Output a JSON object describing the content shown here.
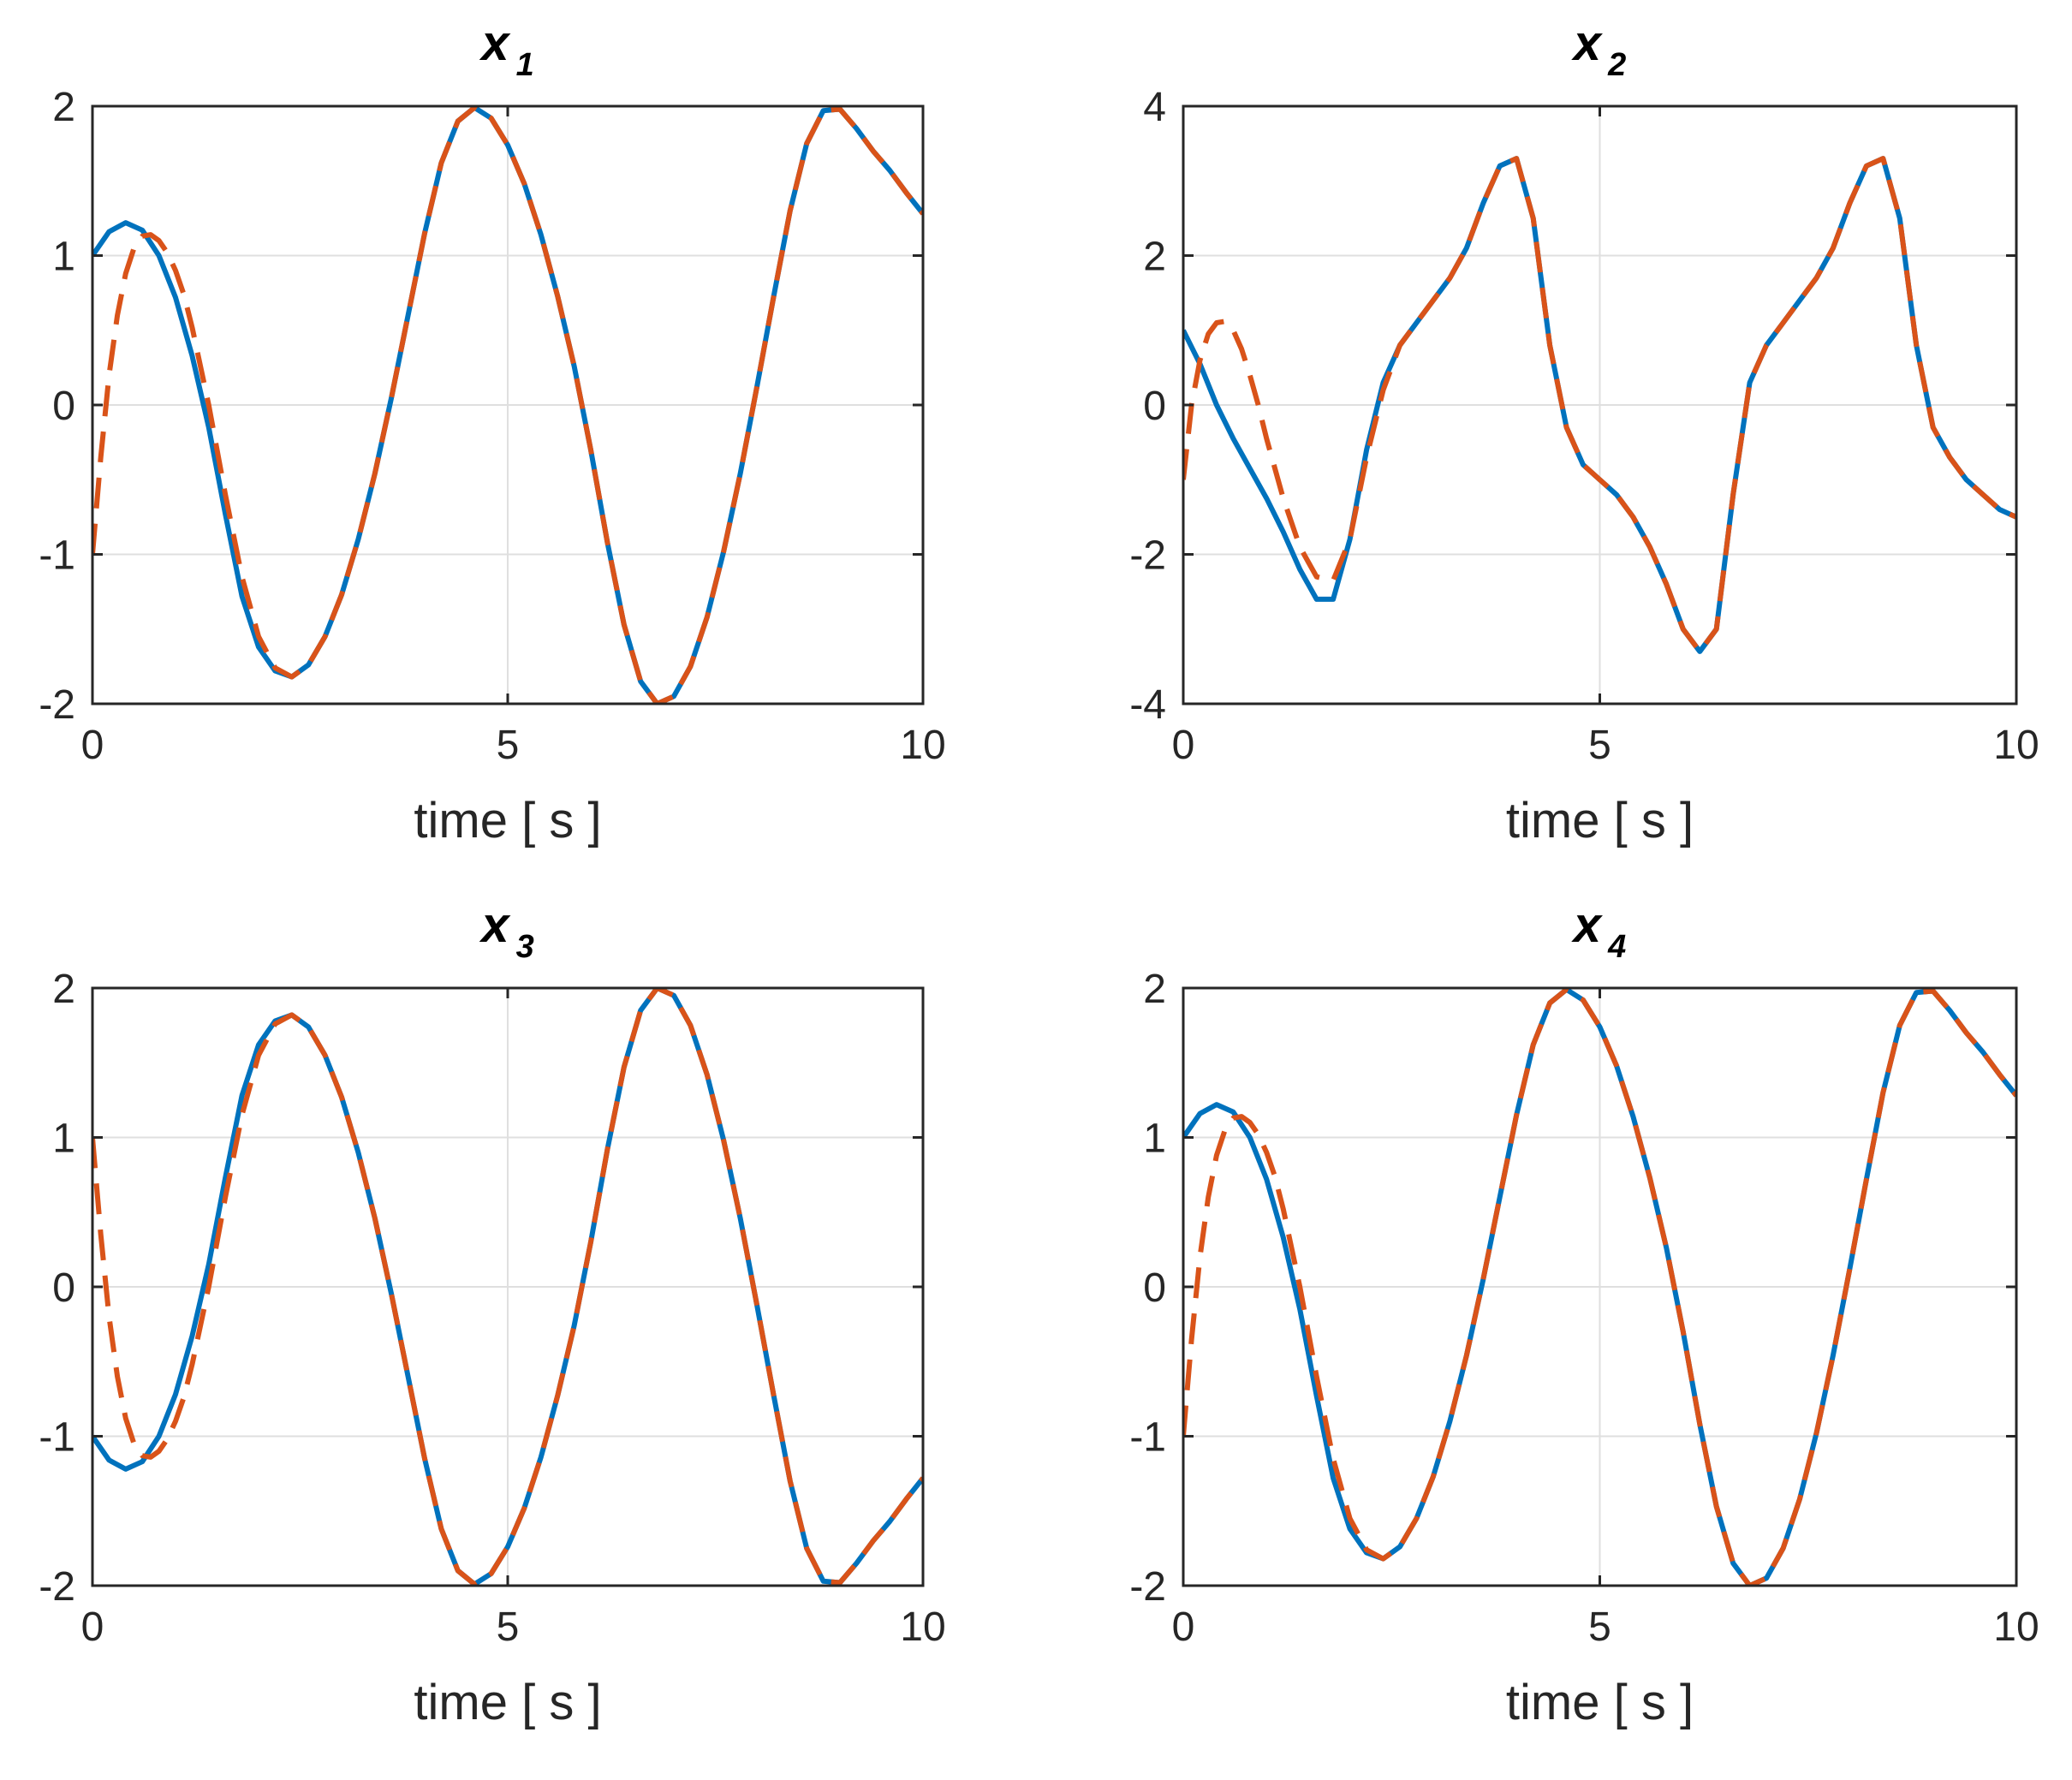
{
  "figure": {
    "background": "#ffffff",
    "axes_color": "#262626",
    "grid_color": "#dfdfdf"
  },
  "chart_data": [
    {
      "type": "line",
      "title": "x",
      "title_subscript": "1",
      "xlabel": "time [ s ]",
      "ylabel": "",
      "xlim": [
        0,
        10
      ],
      "ylim": [
        -2,
        2
      ],
      "xticks": [
        "0",
        "5",
        "10"
      ],
      "yticks": [
        "-2",
        "-1",
        "0",
        "1",
        "2"
      ],
      "grid": true,
      "legend": "none",
      "series": [
        {
          "color": "#0072bd",
          "style": "solid",
          "x": [
            0,
            0.2,
            0.4,
            0.6,
            0.8,
            1.0,
            1.2,
            1.4,
            1.6,
            1.8,
            2.0,
            2.2,
            2.4,
            2.6,
            2.8,
            3.0,
            3.2,
            3.4,
            3.6,
            3.8,
            4.0,
            4.2,
            4.4,
            4.6,
            4.8,
            5.0,
            5.2,
            5.4,
            5.6,
            5.8,
            6.0,
            6.2,
            6.4,
            6.6,
            6.8,
            7.0,
            7.2,
            7.4,
            7.6,
            7.8,
            8.0,
            8.2,
            8.4,
            8.6,
            8.8,
            9.0,
            9.2,
            9.4,
            9.6,
            9.8,
            10.0
          ],
          "y": [
            1.0,
            1.16,
            1.22,
            1.17,
            1.0,
            0.72,
            0.33,
            -0.15,
            -0.73,
            -1.28,
            -1.62,
            -1.78,
            -1.82,
            -1.74,
            -1.55,
            -1.27,
            -0.9,
            -0.46,
            0.05,
            0.6,
            1.15,
            1.62,
            1.9,
            1.99,
            1.92,
            1.74,
            1.48,
            1.14,
            0.73,
            0.26,
            -0.3,
            -0.92,
            -1.47,
            -1.85,
            -2.0,
            -1.95,
            -1.75,
            -1.42,
            -0.98,
            -0.46,
            0.12,
            0.72,
            1.3,
            1.75,
            1.97,
            1.98,
            1.85,
            1.7,
            1.57,
            1.42,
            1.28
          ]
        },
        {
          "color": "#d95319",
          "style": "dashed",
          "x": [
            0,
            0.1,
            0.2,
            0.3,
            0.4,
            0.5,
            0.6,
            0.7,
            0.8,
            0.9,
            1.0,
            1.1,
            1.2,
            1.4,
            1.6,
            1.8,
            2.0,
            2.2,
            2.4,
            2.6,
            2.8,
            3.0,
            3.2,
            3.4,
            3.6,
            3.8,
            4.0,
            4.2,
            4.4,
            4.6,
            4.8,
            5.0,
            5.2,
            5.4,
            5.6,
            5.8,
            6.0,
            6.2,
            6.4,
            6.6,
            6.8,
            7.0,
            7.2,
            7.4,
            7.6,
            7.8,
            8.0,
            8.2,
            8.4,
            8.6,
            8.8,
            9.0,
            9.2,
            9.4,
            9.6,
            9.8,
            10.0
          ],
          "y": [
            -1.0,
            -0.35,
            0.2,
            0.6,
            0.88,
            1.05,
            1.13,
            1.14,
            1.1,
            1.02,
            0.9,
            0.74,
            0.52,
            0.0,
            -0.6,
            -1.15,
            -1.55,
            -1.76,
            -1.82,
            -1.74,
            -1.55,
            -1.27,
            -0.9,
            -0.46,
            0.05,
            0.6,
            1.15,
            1.62,
            1.9,
            1.99,
            1.92,
            1.74,
            1.48,
            1.14,
            0.73,
            0.26,
            -0.3,
            -0.92,
            -1.47,
            -1.85,
            -2.0,
            -1.95,
            -1.75,
            -1.42,
            -0.98,
            -0.46,
            0.12,
            0.72,
            1.3,
            1.75,
            1.97,
            1.98,
            1.85,
            1.7,
            1.57,
            1.42,
            1.28
          ]
        }
      ]
    },
    {
      "type": "line",
      "title": "x",
      "title_subscript": "2",
      "xlabel": "time [ s ]",
      "ylabel": "",
      "xlim": [
        0,
        10
      ],
      "ylim": [
        -4,
        4
      ],
      "xticks": [
        "0",
        "5",
        "10"
      ],
      "yticks": [
        "-4",
        "-2",
        "0",
        "2",
        "4"
      ],
      "grid": true,
      "legend": "none",
      "series": [
        {
          "color": "#0072bd",
          "style": "solid",
          "x": [
            0,
            0.2,
            0.4,
            0.6,
            0.8,
            1.0,
            1.2,
            1.4,
            1.6,
            1.8,
            2.0,
            2.2,
            2.4,
            2.6,
            2.8,
            3.0,
            3.2,
            3.4,
            3.6,
            3.8,
            4.0,
            4.2,
            4.4,
            4.6,
            4.8,
            5.0,
            5.2,
            5.4,
            5.6,
            5.8,
            6.0,
            6.2,
            6.4,
            6.6,
            6.8,
            7.0,
            7.2,
            7.4,
            7.6,
            7.8,
            8.0,
            8.2,
            8.4,
            8.6,
            8.8,
            9.0,
            9.2,
            9.4,
            9.6,
            9.8,
            10.0
          ],
          "y": [
            1.0,
            0.55,
            0.0,
            -0.45,
            -0.85,
            -1.25,
            -1.7,
            -2.2,
            -2.6,
            -2.6,
            -1.8,
            -0.6,
            0.3,
            0.8,
            1.1,
            1.4,
            1.7,
            2.1,
            2.7,
            3.2,
            3.3,
            2.5,
            0.8,
            -0.3,
            -0.8,
            -1.0,
            -1.2,
            -1.5,
            -1.9,
            -2.4,
            -3.0,
            -3.3,
            -3.0,
            -1.2,
            0.3,
            0.8,
            1.1,
            1.4,
            1.7,
            2.1,
            2.7,
            3.2,
            3.3,
            2.5,
            0.8,
            -0.3,
            -0.7,
            -1.0,
            -1.2,
            -1.4,
            -1.5
          ]
        },
        {
          "color": "#d95319",
          "style": "dashed",
          "x": [
            0,
            0.1,
            0.2,
            0.3,
            0.4,
            0.5,
            0.6,
            0.7,
            0.8,
            0.9,
            1.0,
            1.2,
            1.4,
            1.6,
            1.8,
            2.0,
            2.2,
            2.4,
            2.6,
            2.8,
            3.0,
            3.2,
            3.4,
            3.6,
            3.8,
            4.0,
            4.2,
            4.4,
            4.6,
            4.8,
            5.0,
            5.2,
            5.4,
            5.6,
            5.8,
            6.0,
            6.2,
            6.4,
            6.6,
            6.8,
            7.0,
            7.2,
            7.4,
            7.6,
            7.8,
            8.0,
            8.2,
            8.4,
            8.6,
            8.8,
            9.0,
            9.2,
            9.4,
            9.6,
            9.8,
            10.0
          ],
          "y": [
            -1.0,
            0.0,
            0.6,
            0.95,
            1.1,
            1.12,
            1.0,
            0.75,
            0.4,
            0.0,
            -0.45,
            -1.25,
            -1.9,
            -2.3,
            -2.35,
            -1.8,
            -0.7,
            0.2,
            0.8,
            1.1,
            1.4,
            1.7,
            2.1,
            2.7,
            3.2,
            3.3,
            2.5,
            0.8,
            -0.3,
            -0.8,
            -1.0,
            -1.2,
            -1.5,
            -1.9,
            -2.4,
            -3.0,
            -3.3,
            -3.0,
            -1.2,
            0.3,
            0.8,
            1.1,
            1.4,
            1.7,
            2.1,
            2.7,
            3.2,
            3.3,
            2.5,
            0.8,
            -0.3,
            -0.7,
            -1.0,
            -1.2,
            -1.4,
            -1.5
          ]
        }
      ]
    },
    {
      "type": "line",
      "title": "x",
      "title_subscript": "3",
      "xlabel": "time [ s ]",
      "ylabel": "",
      "xlim": [
        0,
        10
      ],
      "ylim": [
        -2,
        2
      ],
      "xticks": [
        "0",
        "5",
        "10"
      ],
      "yticks": [
        "-2",
        "-1",
        "0",
        "1",
        "2"
      ],
      "grid": true,
      "legend": "none",
      "series": [
        {
          "color": "#0072bd",
          "style": "solid",
          "x": [
            0,
            0.2,
            0.4,
            0.6,
            0.8,
            1.0,
            1.2,
            1.4,
            1.6,
            1.8,
            2.0,
            2.2,
            2.4,
            2.6,
            2.8,
            3.0,
            3.2,
            3.4,
            3.6,
            3.8,
            4.0,
            4.2,
            4.4,
            4.6,
            4.8,
            5.0,
            5.2,
            5.4,
            5.6,
            5.8,
            6.0,
            6.2,
            6.4,
            6.6,
            6.8,
            7.0,
            7.2,
            7.4,
            7.6,
            7.8,
            8.0,
            8.2,
            8.4,
            8.6,
            8.8,
            9.0,
            9.2,
            9.4,
            9.6,
            9.8,
            10.0
          ],
          "y": [
            -1.0,
            -1.16,
            -1.22,
            -1.17,
            -1.0,
            -0.72,
            -0.33,
            0.15,
            0.73,
            1.28,
            1.62,
            1.78,
            1.82,
            1.74,
            1.55,
            1.27,
            0.9,
            0.46,
            -0.05,
            -0.6,
            -1.15,
            -1.62,
            -1.9,
            -1.99,
            -1.92,
            -1.74,
            -1.48,
            -1.14,
            -0.73,
            -0.26,
            0.3,
            0.92,
            1.47,
            1.85,
            2.0,
            1.95,
            1.75,
            1.42,
            0.98,
            0.46,
            -0.12,
            -0.72,
            -1.3,
            -1.75,
            -1.97,
            -1.98,
            -1.85,
            -1.7,
            -1.57,
            -1.42,
            -1.28
          ]
        },
        {
          "color": "#d95319",
          "style": "dashed",
          "x": [
            0,
            0.1,
            0.2,
            0.3,
            0.4,
            0.5,
            0.6,
            0.7,
            0.8,
            0.9,
            1.0,
            1.1,
            1.2,
            1.4,
            1.6,
            1.8,
            2.0,
            2.2,
            2.4,
            2.6,
            2.8,
            3.0,
            3.2,
            3.4,
            3.6,
            3.8,
            4.0,
            4.2,
            4.4,
            4.6,
            4.8,
            5.0,
            5.2,
            5.4,
            5.6,
            5.8,
            6.0,
            6.2,
            6.4,
            6.6,
            6.8,
            7.0,
            7.2,
            7.4,
            7.6,
            7.8,
            8.0,
            8.2,
            8.4,
            8.6,
            8.8,
            9.0,
            9.2,
            9.4,
            9.6,
            9.8,
            10.0
          ],
          "y": [
            1.0,
            0.35,
            -0.2,
            -0.6,
            -0.88,
            -1.05,
            -1.13,
            -1.14,
            -1.1,
            -1.02,
            -0.9,
            -0.74,
            -0.52,
            0.0,
            0.6,
            1.15,
            1.55,
            1.76,
            1.82,
            1.74,
            1.55,
            1.27,
            0.9,
            0.46,
            -0.05,
            -0.6,
            -1.15,
            -1.62,
            -1.9,
            -1.99,
            -1.92,
            -1.74,
            -1.48,
            -1.14,
            -0.73,
            -0.26,
            0.3,
            0.92,
            1.47,
            1.85,
            2.0,
            1.95,
            1.75,
            1.42,
            0.98,
            0.46,
            -0.12,
            -0.72,
            -1.3,
            -1.75,
            -1.97,
            -1.98,
            -1.85,
            -1.7,
            -1.57,
            -1.42,
            -1.28
          ]
        }
      ]
    },
    {
      "type": "line",
      "title": "x",
      "title_subscript": "4",
      "xlabel": "time [ s ]",
      "ylabel": "",
      "xlim": [
        0,
        10
      ],
      "ylim": [
        -2,
        2
      ],
      "xticks": [
        "0",
        "5",
        "10"
      ],
      "yticks": [
        "-2",
        "-1",
        "0",
        "1",
        "2"
      ],
      "grid": true,
      "legend": "none",
      "series": [
        {
          "color": "#0072bd",
          "style": "solid",
          "x": [
            0,
            0.2,
            0.4,
            0.6,
            0.8,
            1.0,
            1.2,
            1.4,
            1.6,
            1.8,
            2.0,
            2.2,
            2.4,
            2.6,
            2.8,
            3.0,
            3.2,
            3.4,
            3.6,
            3.8,
            4.0,
            4.2,
            4.4,
            4.6,
            4.8,
            5.0,
            5.2,
            5.4,
            5.6,
            5.8,
            6.0,
            6.2,
            6.4,
            6.6,
            6.8,
            7.0,
            7.2,
            7.4,
            7.6,
            7.8,
            8.0,
            8.2,
            8.4,
            8.6,
            8.8,
            9.0,
            9.2,
            9.4,
            9.6,
            9.8,
            10.0
          ],
          "y": [
            1.0,
            1.16,
            1.22,
            1.17,
            1.0,
            0.72,
            0.33,
            -0.15,
            -0.73,
            -1.28,
            -1.62,
            -1.78,
            -1.82,
            -1.74,
            -1.55,
            -1.27,
            -0.9,
            -0.46,
            0.05,
            0.6,
            1.15,
            1.62,
            1.9,
            1.99,
            1.92,
            1.74,
            1.48,
            1.14,
            0.73,
            0.26,
            -0.3,
            -0.92,
            -1.47,
            -1.85,
            -2.0,
            -1.95,
            -1.75,
            -1.42,
            -0.98,
            -0.46,
            0.12,
            0.72,
            1.3,
            1.75,
            1.97,
            1.98,
            1.85,
            1.7,
            1.57,
            1.42,
            1.28
          ]
        },
        {
          "color": "#d95319",
          "style": "dashed",
          "x": [
            0,
            0.1,
            0.2,
            0.3,
            0.4,
            0.5,
            0.6,
            0.7,
            0.8,
            0.9,
            1.0,
            1.1,
            1.2,
            1.4,
            1.6,
            1.8,
            2.0,
            2.2,
            2.4,
            2.6,
            2.8,
            3.0,
            3.2,
            3.4,
            3.6,
            3.8,
            4.0,
            4.2,
            4.4,
            4.6,
            4.8,
            5.0,
            5.2,
            5.4,
            5.6,
            5.8,
            6.0,
            6.2,
            6.4,
            6.6,
            6.8,
            7.0,
            7.2,
            7.4,
            7.6,
            7.8,
            8.0,
            8.2,
            8.4,
            8.6,
            8.8,
            9.0,
            9.2,
            9.4,
            9.6,
            9.8,
            10.0
          ],
          "y": [
            -1.0,
            -0.35,
            0.2,
            0.6,
            0.88,
            1.05,
            1.13,
            1.14,
            1.1,
            1.02,
            0.9,
            0.74,
            0.52,
            0.0,
            -0.6,
            -1.15,
            -1.55,
            -1.76,
            -1.82,
            -1.74,
            -1.55,
            -1.27,
            -0.9,
            -0.46,
            0.05,
            0.6,
            1.15,
            1.62,
            1.9,
            1.99,
            1.92,
            1.74,
            1.48,
            1.14,
            0.73,
            0.26,
            -0.3,
            -0.92,
            -1.47,
            -1.85,
            -2.0,
            -1.95,
            -1.75,
            -1.42,
            -0.98,
            -0.46,
            0.12,
            0.72,
            1.3,
            1.75,
            1.97,
            1.98,
            1.85,
            1.7,
            1.57,
            1.42,
            1.28
          ]
        }
      ]
    }
  ]
}
